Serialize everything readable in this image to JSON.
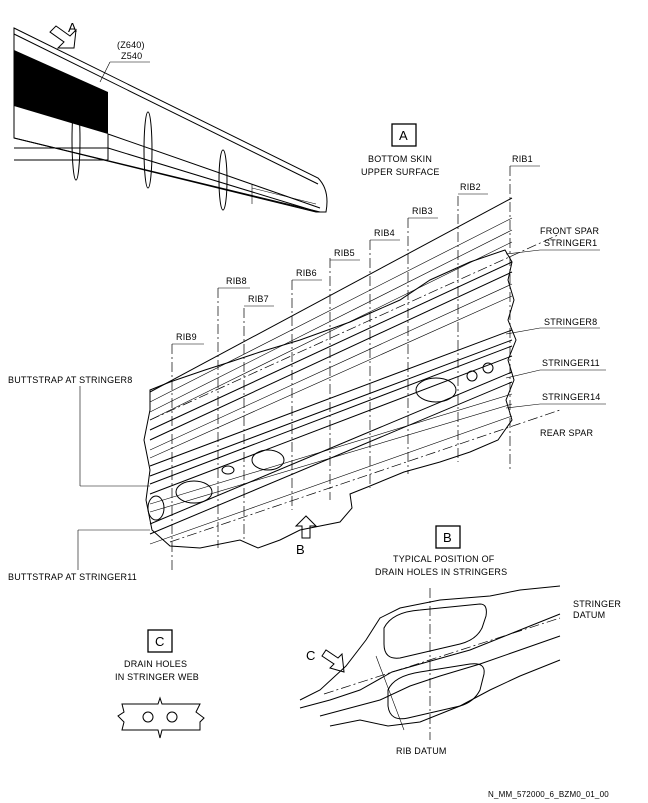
{
  "view_a": {
    "arrow_letter": "A",
    "zone_alt": "(Z640)",
    "zone": "Z540",
    "box_letter": "A",
    "title_line1": "BOTTOM SKIN",
    "title_line2": "UPPER SURFACE"
  },
  "ribs": [
    "RIB1",
    "RIB2",
    "RIB3",
    "RIB4",
    "RIB5",
    "RIB6",
    "RIB7",
    "RIB8",
    "RIB9"
  ],
  "right_labels": {
    "front_spar": "FRONT SPAR",
    "stringer1": "STRINGER1",
    "stringer8": "STRINGER8",
    "stringer11": "STRINGER11",
    "stringer14": "STRINGER14",
    "rear_spar": "REAR SPAR"
  },
  "left_labels": {
    "buttstrap8": "BUTTSTRAP AT STRINGER8",
    "buttstrap11": "BUTTSTRAP AT STRINGER11"
  },
  "view_b": {
    "arrow_letter": "B",
    "box_letter": "B",
    "title_line1": "TYPICAL POSITION OF",
    "title_line2": "DRAIN HOLES IN STRINGERS",
    "stringer_datum_1": "STRINGER",
    "stringer_datum_2": "DATUM",
    "rib_datum": "RIB DATUM",
    "arrow_c_letter": "C"
  },
  "view_c": {
    "box_letter": "C",
    "title_line1": "DRAIN HOLES",
    "title_line2": "IN STRINGER WEB"
  },
  "figure_ref": "N_MM_572000_6_BZM0_01_00"
}
